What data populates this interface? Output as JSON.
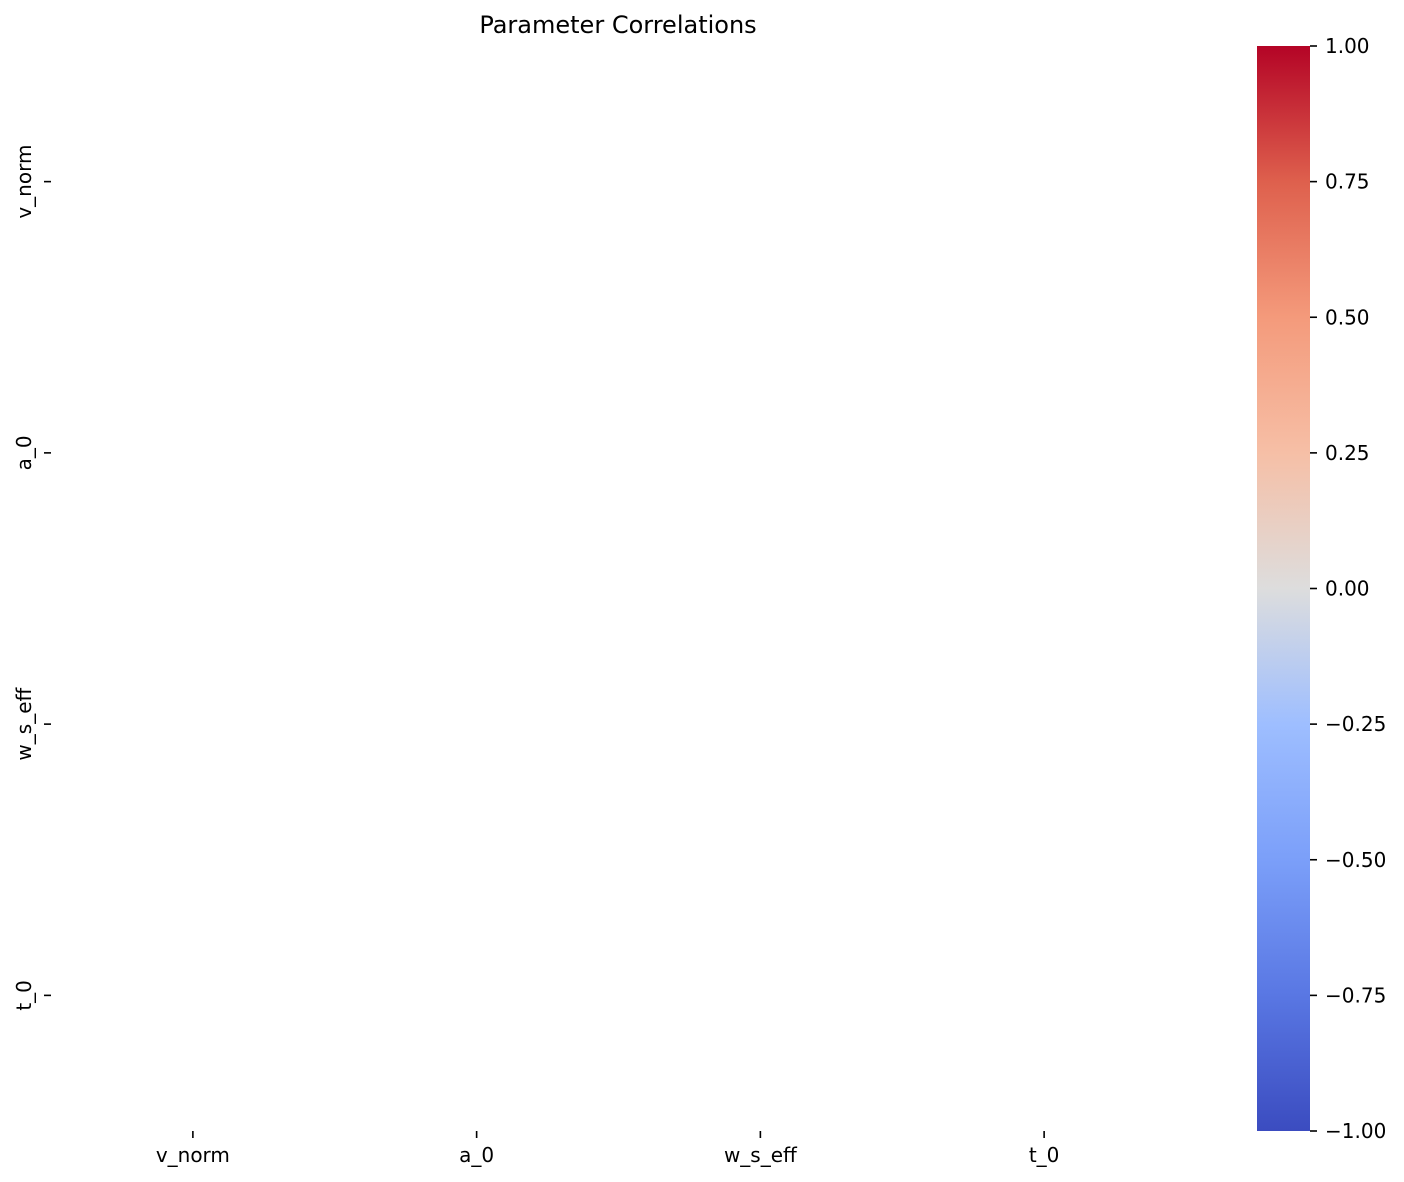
{
  "chart_data": {
    "type": "heatmap",
    "title": "Parameter Correlations",
    "xlabel": "",
    "ylabel": "",
    "x_categories": [
      "v_norm",
      "a_0",
      "w_s_eff",
      "t_0"
    ],
    "y_categories": [
      "v_norm",
      "a_0",
      "w_s_eff",
      "t_0"
    ],
    "values": [
      [
        null,
        null,
        null,
        null
      ],
      [
        null,
        null,
        null,
        null
      ],
      [
        null,
        null,
        null,
        null
      ],
      [
        null,
        null,
        null,
        null
      ]
    ],
    "colormap": "coolwarm",
    "vmin": -1.0,
    "vmax": 1.0,
    "colorbar": {
      "ticks": [
        1.0,
        0.75,
        0.5,
        0.25,
        0.0,
        -0.25,
        -0.5,
        -0.75,
        -1.0
      ],
      "tick_labels": [
        "1.00",
        "0.75",
        "0.50",
        "0.25",
        "0.00",
        "−0.25",
        "−0.50",
        "−0.75",
        "−1.00"
      ],
      "placement": "right"
    },
    "grid": false
  }
}
